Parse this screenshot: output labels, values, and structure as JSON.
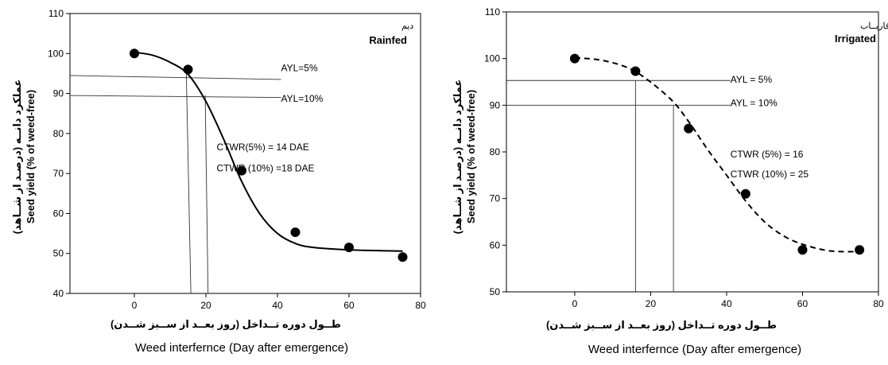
{
  "chart_data": [
    {
      "type": "scatter",
      "tag_fa": "دیم",
      "tag_en": "Rainfed",
      "xlabel_fa": "طــول دوره تــداخل (روز بعــد از ســبز شــدن)",
      "xlabel_en": "Weed interfernce (Day after emergence)",
      "ylabel_fa": "عملکرد دانــه (درصـد از شــاهد)",
      "ylabel_en": "Seed yield (% of weed-free)",
      "xlim": [
        -18,
        80
      ],
      "ylim": [
        40,
        110
      ],
      "xticks": [
        0,
        20,
        40,
        60,
        80
      ],
      "yticks": [
        40,
        50,
        60,
        70,
        80,
        90,
        100,
        110
      ],
      "series": [
        {
          "points": [
            [
              0,
              100
            ],
            [
              15,
              96
            ],
            [
              30,
              70.7
            ],
            [
              45,
              55.3
            ],
            [
              60,
              51.5
            ],
            [
              75,
              49.1
            ]
          ],
          "fit": [
            [
              0,
              100.3
            ],
            [
              5,
              99.6
            ],
            [
              10,
              97.8
            ],
            [
              15,
              94.8
            ],
            [
              20,
              88
            ],
            [
              25,
              78.5
            ],
            [
              30,
              68
            ],
            [
              35,
              60
            ],
            [
              40,
              55
            ],
            [
              45,
              52.5
            ],
            [
              50,
              51.5
            ],
            [
              60,
              50.9
            ],
            [
              75,
              50.6
            ]
          ],
          "line_style": "solid"
        }
      ],
      "annotations": [
        {
          "text": "AYL=5%",
          "x": 41,
          "y": 96.4
        },
        {
          "text": "AYL=10%",
          "x": 41,
          "y": 88.7
        },
        {
          "text": "CTWR(5%) = 14 DAE",
          "x": 23,
          "y": 76.6
        },
        {
          "text": "CTWR (10%) =18 DAE",
          "x": 23,
          "y": 71.3
        }
      ]
    },
    {
      "type": "scatter",
      "tag_fa": "فاریــاب",
      "tag_en": "Irrigated",
      "xlabel_fa": "طــول دوره تــداخل (روز بعــد از ســبز شــدن)",
      "xlabel_en": "Weed interfernce (Day after emergence)",
      "ylabel_fa": "عملکرد دانــه (درصـد از شــاهد)",
      "ylabel_en": "Seed yield (% of weed-free)",
      "xlim": [
        -18,
        80
      ],
      "ylim": [
        50,
        110
      ],
      "xticks": [
        0,
        20,
        40,
        60,
        80
      ],
      "yticks": [
        50,
        60,
        70,
        80,
        90,
        100,
        110
      ],
      "series": [
        {
          "points": [
            [
              0,
              100
            ],
            [
              16,
              97.3
            ],
            [
              30,
              85
            ],
            [
              45,
              71
            ],
            [
              60,
              59
            ],
            [
              75,
              59
            ]
          ],
          "fit": [
            [
              0,
              100.2
            ],
            [
              8,
              99.5
            ],
            [
              16,
              97.2
            ],
            [
              25,
              91.5
            ],
            [
              30,
              86.5
            ],
            [
              35,
              80.5
            ],
            [
              40,
              75
            ],
            [
              45,
              69.5
            ],
            [
              50,
              65
            ],
            [
              55,
              62
            ],
            [
              60,
              60.2
            ],
            [
              67,
              58.8
            ],
            [
              75,
              58.6
            ]
          ],
          "line_style": "dashed"
        }
      ],
      "annotations": [
        {
          "text": "AYL = 5%",
          "x": 41,
          "y": 95.5
        },
        {
          "text": "AYL = 10%",
          "x": 41,
          "y": 90.5
        },
        {
          "text": "CTWR (5%) = 16",
          "x": 41,
          "y": 79.5
        },
        {
          "text": "CTWR (10%) = 25",
          "x": 41,
          "y": 75.2
        }
      ]
    }
  ]
}
